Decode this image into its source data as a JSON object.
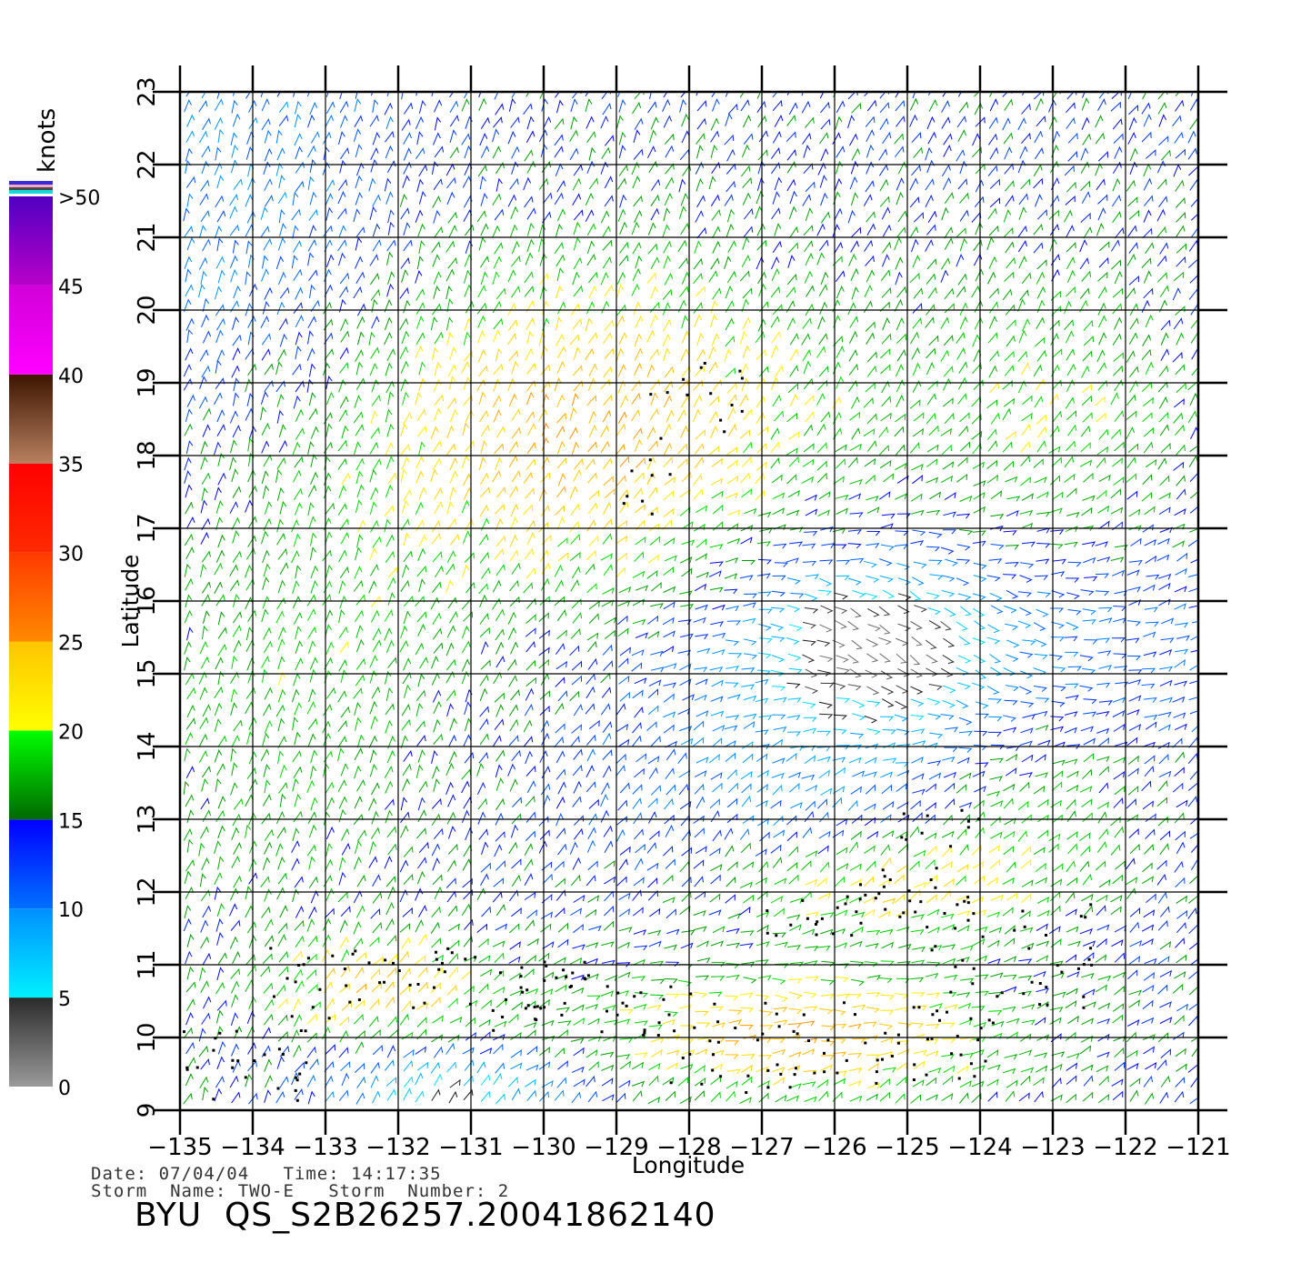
{
  "map": {
    "x_axis_label": "Longitude",
    "y_axis_label": "Latitude",
    "lon_ticks": [
      "-135",
      "-134",
      "-133",
      "-132",
      "-131",
      "-130",
      "-129",
      "-128",
      "-127",
      "-126",
      "-125",
      "-124",
      "-123",
      "-122",
      "-121"
    ],
    "lat_ticks": [
      "9",
      "10",
      "11",
      "12",
      "13",
      "14",
      "15",
      "16",
      "17",
      "18",
      "19",
      "20",
      "21",
      "22",
      "23"
    ],
    "lon_range": [
      -135,
      -121
    ],
    "lat_range": [
      9,
      23
    ],
    "grid": true,
    "wind_field": {
      "symbol": "wind-barb",
      "speed_range_knots": [
        0,
        50
      ],
      "flagged_cells": "black dots mark rain-flagged vectors"
    }
  },
  "legend": {
    "unit": "knots",
    "levels": [
      {
        "label": "0",
        "value": 0
      },
      {
        "label": "5",
        "value": 5
      },
      {
        "label": "10",
        "value": 10
      },
      {
        "label": "15",
        "value": 15
      },
      {
        "label": "20",
        "value": 20
      },
      {
        "label": "25",
        "value": 25
      },
      {
        "label": "30",
        "value": 30
      },
      {
        "label": "35",
        "value": 35
      },
      {
        "label": "40",
        "value": 40
      },
      {
        "label": "45",
        "value": 45
      },
      {
        "label": ">50",
        "value": 50
      }
    ],
    "bands": [
      {
        "from": 0,
        "to": 5,
        "colors": [
          "#9a9a9a",
          "#2b2b2b"
        ]
      },
      {
        "from": 5,
        "to": 10,
        "colors": [
          "#00f0ff",
          "#0090ff"
        ]
      },
      {
        "from": 10,
        "to": 15,
        "colors": [
          "#0070ff",
          "#0000ff"
        ]
      },
      {
        "from": 15,
        "to": 20,
        "colors": [
          "#006800",
          "#00ff00"
        ]
      },
      {
        "from": 20,
        "to": 25,
        "colors": [
          "#ffff00",
          "#ffc400"
        ]
      },
      {
        "from": 25,
        "to": 30,
        "colors": [
          "#ff8a00",
          "#ff3a00"
        ]
      },
      {
        "from": 30,
        "to": 35,
        "colors": [
          "#ff2a00",
          "#ff0000"
        ]
      },
      {
        "from": 35,
        "to": 40,
        "colors": [
          "#b88060",
          "#3d1500"
        ]
      },
      {
        "from": 40,
        "to": 45,
        "colors": [
          "#ff00ff",
          "#d000d8"
        ]
      },
      {
        "from": 45,
        "to": 50,
        "colors": [
          "#b800c8",
          "#5000c0"
        ]
      }
    ]
  },
  "info": {
    "line1": "Date: 07/04/04   Time: 14:17:35",
    "line2": "Storm  Name: TWO-E   Storm  Number: 2"
  },
  "title": "BYU  QS_S2B26257.20041862140"
}
